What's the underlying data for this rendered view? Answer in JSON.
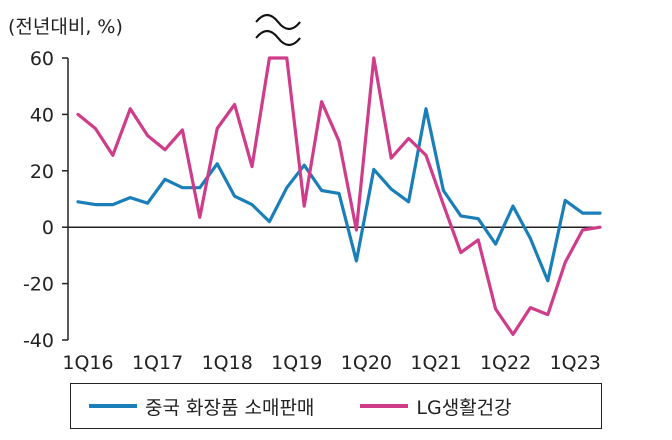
{
  "chart_data": {
    "type": "line",
    "unit_label": "(전년대비, %)",
    "ylim": [
      -40,
      60
    ],
    "yticks": [
      -40,
      -20,
      0,
      20,
      40,
      60
    ],
    "x": [
      "1Q16",
      "2Q16",
      "3Q16",
      "4Q16",
      "1Q17",
      "2Q17",
      "3Q17",
      "4Q17",
      "1Q18",
      "2Q18",
      "3Q18",
      "4Q18",
      "1Q19",
      "2Q19",
      "3Q19",
      "4Q19",
      "1Q20",
      "2Q20",
      "3Q20",
      "4Q20",
      "1Q21",
      "2Q21",
      "3Q21",
      "4Q21",
      "1Q22",
      "2Q22",
      "3Q22",
      "4Q22",
      "1Q23",
      "2Q23",
      "3Q23"
    ],
    "xtick_labels": [
      "1Q16",
      "1Q17",
      "1Q18",
      "1Q19",
      "1Q20",
      "1Q21",
      "1Q22",
      "1Q23"
    ],
    "series": [
      {
        "name": "중국 화장품 소매판매",
        "color": "#1a7fb8",
        "values": [
          9,
          8,
          8,
          10.5,
          8.5,
          17,
          14,
          14,
          22.5,
          11,
          8,
          2,
          14,
          22,
          13,
          12,
          -12,
          20.5,
          13.5,
          9,
          42,
          13,
          4,
          3,
          -6,
          7.5,
          -4,
          -19,
          9.5,
          5,
          5
        ]
      },
      {
        "name": "LG생활건강",
        "color": "#cf3c8a",
        "values": [
          40,
          35,
          25.5,
          42,
          32.5,
          27.5,
          34.5,
          3.5,
          35,
          43.5,
          21.5,
          60,
          60,
          7.5,
          44.5,
          30.5,
          -1,
          60,
          24.5,
          31.5,
          25.5,
          8,
          -9,
          -4.5,
          -29,
          -38,
          -28.5,
          -31,
          -12.5,
          -1,
          0
        ]
      }
    ],
    "axis_break_marker": "≈",
    "grid": false,
    "legend_position": "bottom"
  }
}
